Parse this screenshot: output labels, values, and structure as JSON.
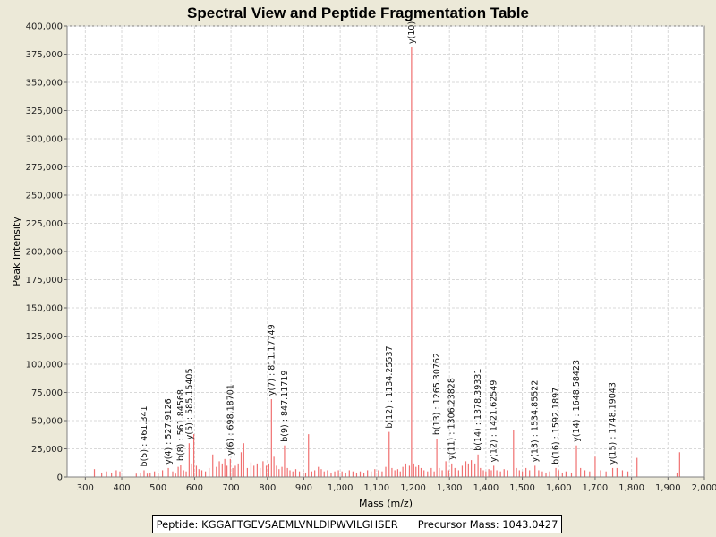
{
  "chart_data": {
    "type": "bar",
    "title": "Spectral View and Peptide Fragmentation Table",
    "xlabel": "Mass (m/z)",
    "ylabel": "Peak Intensity",
    "xlim": [
      250,
      2000
    ],
    "ylim": [
      0,
      400000
    ],
    "xticks": [
      300,
      400,
      500,
      600,
      700,
      800,
      900,
      1000,
      1100,
      1200,
      1300,
      1400,
      1500,
      1600,
      1700,
      1800,
      1900,
      2000
    ],
    "xtick_labels": [
      "300",
      "400",
      "500",
      "600",
      "700",
      "800",
      "900",
      "1,000",
      "1,100",
      "1,200",
      "1,300",
      "1,400",
      "1,500",
      "1,600",
      "1,700",
      "1,800",
      "1,900",
      "2,000"
    ],
    "yticks": [
      0,
      25000,
      50000,
      75000,
      100000,
      125000,
      150000,
      175000,
      200000,
      225000,
      250000,
      275000,
      300000,
      325000,
      350000,
      375000,
      400000
    ],
    "ytick_labels": [
      "0",
      "25,000",
      "50,000",
      "75,000",
      "100,000",
      "125,000",
      "150,000",
      "175,000",
      "200,000",
      "225,000",
      "250,000",
      "275,000",
      "300,000",
      "325,000",
      "350,000",
      "375,000",
      "400,000"
    ],
    "grid": true,
    "bar_color": "#F07070",
    "peaks": [
      {
        "mz": 325,
        "i": 7000
      },
      {
        "mz": 345,
        "i": 4000
      },
      {
        "mz": 358,
        "i": 5000
      },
      {
        "mz": 372,
        "i": 4000
      },
      {
        "mz": 385,
        "i": 6000
      },
      {
        "mz": 395,
        "i": 5000
      },
      {
        "mz": 440,
        "i": 3000
      },
      {
        "mz": 452,
        "i": 4000
      },
      {
        "mz": 461.341,
        "i": 6000
      },
      {
        "mz": 470,
        "i": 3000
      },
      {
        "mz": 478,
        "i": 4000
      },
      {
        "mz": 490,
        "i": 5000
      },
      {
        "mz": 500,
        "i": 4000
      },
      {
        "mz": 512,
        "i": 6000
      },
      {
        "mz": 527.9126,
        "i": 8000
      },
      {
        "mz": 540,
        "i": 5000
      },
      {
        "mz": 548,
        "i": 3000
      },
      {
        "mz": 555,
        "i": 9000
      },
      {
        "mz": 561.84568,
        "i": 11000
      },
      {
        "mz": 570,
        "i": 6000
      },
      {
        "mz": 577,
        "i": 5000
      },
      {
        "mz": 585.15405,
        "i": 30000
      },
      {
        "mz": 592,
        "i": 12000
      },
      {
        "mz": 598,
        "i": 38000
      },
      {
        "mz": 605,
        "i": 10000
      },
      {
        "mz": 612,
        "i": 7000
      },
      {
        "mz": 620,
        "i": 6000
      },
      {
        "mz": 630,
        "i": 5000
      },
      {
        "mz": 640,
        "i": 8000
      },
      {
        "mz": 650,
        "i": 20000
      },
      {
        "mz": 660,
        "i": 9000
      },
      {
        "mz": 668,
        "i": 14000
      },
      {
        "mz": 676,
        "i": 12000
      },
      {
        "mz": 683,
        "i": 16000
      },
      {
        "mz": 689,
        "i": 10000
      },
      {
        "mz": 698.18701,
        "i": 16000
      },
      {
        "mz": 705,
        "i": 8000
      },
      {
        "mz": 712,
        "i": 10000
      },
      {
        "mz": 720,
        "i": 12000
      },
      {
        "mz": 728,
        "i": 22000
      },
      {
        "mz": 735,
        "i": 30000
      },
      {
        "mz": 745,
        "i": 8000
      },
      {
        "mz": 755,
        "i": 13000
      },
      {
        "mz": 763,
        "i": 10000
      },
      {
        "mz": 772,
        "i": 12000
      },
      {
        "mz": 780,
        "i": 8000
      },
      {
        "mz": 788,
        "i": 14000
      },
      {
        "mz": 797,
        "i": 10000
      },
      {
        "mz": 804,
        "i": 12000
      },
      {
        "mz": 811.17749,
        "i": 69000
      },
      {
        "mz": 818,
        "i": 18000
      },
      {
        "mz": 825,
        "i": 10000
      },
      {
        "mz": 832,
        "i": 7000
      },
      {
        "mz": 840,
        "i": 9000
      },
      {
        "mz": 847.11719,
        "i": 28000
      },
      {
        "mz": 855,
        "i": 8000
      },
      {
        "mz": 862,
        "i": 6000
      },
      {
        "mz": 870,
        "i": 5000
      },
      {
        "mz": 878,
        "i": 7000
      },
      {
        "mz": 888,
        "i": 5000
      },
      {
        "mz": 898,
        "i": 6000
      },
      {
        "mz": 905,
        "i": 4000
      },
      {
        "mz": 913,
        "i": 38000
      },
      {
        "mz": 922,
        "i": 5000
      },
      {
        "mz": 930,
        "i": 6000
      },
      {
        "mz": 940,
        "i": 9000
      },
      {
        "mz": 948,
        "i": 7000
      },
      {
        "mz": 956,
        "i": 5000
      },
      {
        "mz": 965,
        "i": 6000
      },
      {
        "mz": 975,
        "i": 4000
      },
      {
        "mz": 985,
        "i": 5000
      },
      {
        "mz": 995,
        "i": 6000
      },
      {
        "mz": 1005,
        "i": 5000
      },
      {
        "mz": 1015,
        "i": 4000
      },
      {
        "mz": 1025,
        "i": 6000
      },
      {
        "mz": 1035,
        "i": 5000
      },
      {
        "mz": 1045,
        "i": 4000
      },
      {
        "mz": 1055,
        "i": 5000
      },
      {
        "mz": 1065,
        "i": 4000
      },
      {
        "mz": 1075,
        "i": 6000
      },
      {
        "mz": 1085,
        "i": 5000
      },
      {
        "mz": 1095,
        "i": 7000
      },
      {
        "mz": 1105,
        "i": 6000
      },
      {
        "mz": 1115,
        "i": 5000
      },
      {
        "mz": 1125,
        "i": 9000
      },
      {
        "mz": 1134.25537,
        "i": 40000
      },
      {
        "mz": 1142,
        "i": 8000
      },
      {
        "mz": 1150,
        "i": 6000
      },
      {
        "mz": 1158,
        "i": 7000
      },
      {
        "mz": 1165,
        "i": 5000
      },
      {
        "mz": 1172,
        "i": 9000
      },
      {
        "mz": 1180,
        "i": 12000
      },
      {
        "mz": 1190,
        "i": 10000
      },
      {
        "mz": 1196,
        "i": 381000
      },
      {
        "mz": 1202,
        "i": 12000
      },
      {
        "mz": 1208,
        "i": 9000
      },
      {
        "mz": 1215,
        "i": 11000
      },
      {
        "mz": 1222,
        "i": 8000
      },
      {
        "mz": 1230,
        "i": 6000
      },
      {
        "mz": 1240,
        "i": 5000
      },
      {
        "mz": 1250,
        "i": 8000
      },
      {
        "mz": 1258,
        "i": 5000
      },
      {
        "mz": 1265.30762,
        "i": 34000
      },
      {
        "mz": 1272,
        "i": 8000
      },
      {
        "mz": 1280,
        "i": 6000
      },
      {
        "mz": 1290,
        "i": 14000
      },
      {
        "mz": 1298,
        "i": 6000
      },
      {
        "mz": 1306.23828,
        "i": 12000
      },
      {
        "mz": 1315,
        "i": 8000
      },
      {
        "mz": 1325,
        "i": 6000
      },
      {
        "mz": 1335,
        "i": 10000
      },
      {
        "mz": 1345,
        "i": 14000
      },
      {
        "mz": 1352,
        "i": 12000
      },
      {
        "mz": 1360,
        "i": 15000
      },
      {
        "mz": 1370,
        "i": 12000
      },
      {
        "mz": 1378.39331,
        "i": 20000
      },
      {
        "mz": 1385,
        "i": 8000
      },
      {
        "mz": 1393,
        "i": 6000
      },
      {
        "mz": 1400,
        "i": 5000
      },
      {
        "mz": 1408,
        "i": 7000
      },
      {
        "mz": 1415,
        "i": 6000
      },
      {
        "mz": 1421.62549,
        "i": 10000
      },
      {
        "mz": 1430,
        "i": 6000
      },
      {
        "mz": 1440,
        "i": 5000
      },
      {
        "mz": 1450,
        "i": 7000
      },
      {
        "mz": 1460,
        "i": 6000
      },
      {
        "mz": 1476,
        "i": 42000
      },
      {
        "mz": 1484,
        "i": 8000
      },
      {
        "mz": 1492,
        "i": 6000
      },
      {
        "mz": 1500,
        "i": 5000
      },
      {
        "mz": 1510,
        "i": 8000
      },
      {
        "mz": 1520,
        "i": 6000
      },
      {
        "mz": 1534.85522,
        "i": 10000
      },
      {
        "mz": 1545,
        "i": 6000
      },
      {
        "mz": 1555,
        "i": 5000
      },
      {
        "mz": 1565,
        "i": 4000
      },
      {
        "mz": 1575,
        "i": 5000
      },
      {
        "mz": 1592.1897,
        "i": 8000
      },
      {
        "mz": 1600,
        "i": 6000
      },
      {
        "mz": 1610,
        "i": 4000
      },
      {
        "mz": 1620,
        "i": 5000
      },
      {
        "mz": 1635,
        "i": 4000
      },
      {
        "mz": 1648.58423,
        "i": 28000
      },
      {
        "mz": 1660,
        "i": 8000
      },
      {
        "mz": 1672,
        "i": 6000
      },
      {
        "mz": 1685,
        "i": 5000
      },
      {
        "mz": 1700,
        "i": 18000
      },
      {
        "mz": 1715,
        "i": 6000
      },
      {
        "mz": 1730,
        "i": 5000
      },
      {
        "mz": 1748.19043,
        "i": 8000
      },
      {
        "mz": 1760,
        "i": 8000
      },
      {
        "mz": 1775,
        "i": 6000
      },
      {
        "mz": 1790,
        "i": 5000
      },
      {
        "mz": 1815,
        "i": 17000
      },
      {
        "mz": 1925,
        "i": 4000
      },
      {
        "mz": 1932,
        "i": 22000
      }
    ],
    "annotations": [
      {
        "mz": 461.341,
        "i": 6000,
        "label": "b(5) : 461.341"
      },
      {
        "mz": 527.9126,
        "i": 8000,
        "label": "y(4) : 527.9126"
      },
      {
        "mz": 561.84568,
        "i": 11000,
        "label": "b(8) : 561.84568"
      },
      {
        "mz": 585.15405,
        "i": 30000,
        "label": "y(5) : 585.15405"
      },
      {
        "mz": 698.18701,
        "i": 16000,
        "label": "y(6) : 698.18701"
      },
      {
        "mz": 811.17749,
        "i": 69000,
        "label": "y(7) : 811.17749"
      },
      {
        "mz": 847.11719,
        "i": 28000,
        "label": "b(9) : 847.11719"
      },
      {
        "mz": 1134.25537,
        "i": 40000,
        "label": "b(12) : 1134.25537"
      },
      {
        "mz": 1196,
        "i": 381000,
        "label": "y(10)"
      },
      {
        "mz": 1265.30762,
        "i": 34000,
        "label": "b(13) : 1265.30762"
      },
      {
        "mz": 1306.23828,
        "i": 12000,
        "label": "y(11) : 1306.23828"
      },
      {
        "mz": 1378.39331,
        "i": 20000,
        "label": "b(14) : 1378.39331"
      },
      {
        "mz": 1421.62549,
        "i": 10000,
        "label": "y(12) : 1421.62549"
      },
      {
        "mz": 1534.85522,
        "i": 10000,
        "label": "y(13) : 1534.85522"
      },
      {
        "mz": 1592.1897,
        "i": 8000,
        "label": "b(16) : 1592.1897"
      },
      {
        "mz": 1648.58423,
        "i": 28000,
        "label": "y(14) : 1648.58423"
      },
      {
        "mz": 1748.19043,
        "i": 8000,
        "label": "y(15) : 1748.19043"
      }
    ]
  },
  "footer": {
    "peptide": "Peptide: KGGAFTGEVSAEMLVNLDIPWVILGHSER",
    "precursor": "Precursor Mass: 1043.0427"
  }
}
